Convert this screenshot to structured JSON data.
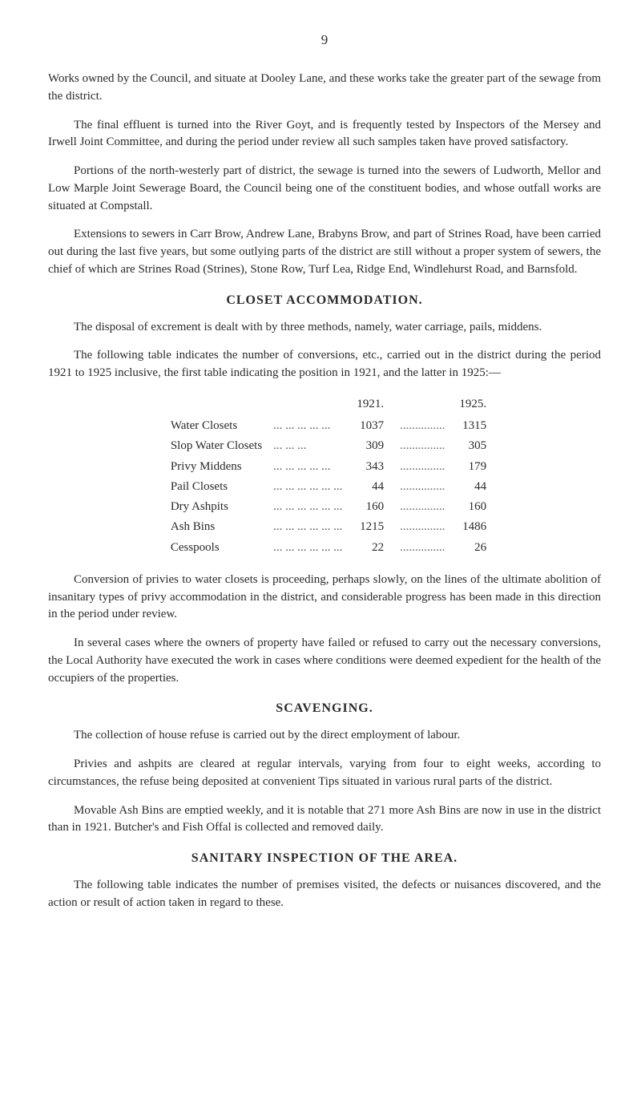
{
  "page_number": "9",
  "paragraphs": {
    "p1": "Works owned by the Council, and situate at Dooley Lane, and these works take the greater part of the sewage from the district.",
    "p2": "The final effluent is turned into the River Goyt, and is fre­quently tested by Inspectors of the Mersey and Irwell Joint Com­mittee, and during the period under review all such samples taken have proved satisfactory.",
    "p3": "Portions of the north-westerly part of district, the sewage is turned into the sewers of Ludworth, Mellor and Low Marple Joint Sewerage Board, the Council being one of the constituent bodies, and whose outfall works are situated at Compstall.",
    "p4": "Extensions to sewers in Carr Brow, Andrew Lane, Brabyns Brow, and part of Strines Road, have been carried out during the last five years, but some outlying parts of the district are still without a proper system of sewers, the chief of which are Strines Road (Strines), Stone Row, Turf Lea, Ridge End, Windlehurst Road, and Barnsfold.",
    "p5": "The disposal of excrement is dealt with by three methods, namely, water carriage, pails, middens.",
    "p6": "The following table indicates the number of conversions, etc., carried out in the district during the period 1921 to 1925 inclusive, the first table indicating the position in 1921, and the latter in 1925:—",
    "p7": "Conversion of privies to water closets is proceeding, perhaps slowly, on the lines of the ultimate abolition of insanitary types of privy accommodation in the district, and considerable progress has been made in this direction in the period under review.",
    "p8": "In several cases where the owners of property have failed or refused to carry out the necessary conversions, the Local Authority have executed the work in cases where conditions were deemed expedient for the health of the occupiers of the properties.",
    "p9": "The collection of house refuse is carried out by the direct employ­ment of labour.",
    "p10": "Privies and ashpits are cleared at regular intervals, varying from four to eight weeks, according to circumstances, the refuse being deposited at convenient Tips situated in various rural parts of the district.",
    "p11": "Movable Ash Bins are emptied weekly, and it is notable that 271 more Ash Bins are now in use in the district than in 1921. Butcher's and Fish Offal is collected and removed daily.",
    "p12": "The following table indicates the number of premises visited, the defects or nuisances discovered, and the action or result of action taken in regard to these."
  },
  "sections": {
    "closet": "CLOSET ACCOMMODATION.",
    "scavenging": "SCAVENGING.",
    "sanitary": "SANITARY INSPECTION OF THE AREA."
  },
  "stats": {
    "header_year_1": "1921.",
    "header_year_2": "1925.",
    "rows": [
      {
        "label": "Water Closets",
        "dots": "... ... ... ... ...",
        "v1": "1037",
        "mid": "...............",
        "v2": "1315"
      },
      {
        "label": "Slop Water Closets",
        "dots": "... ... ...",
        "v1": "309",
        "mid": "...............",
        "v2": "305"
      },
      {
        "label": "Privy Middens",
        "dots": "... ... ... ... ...",
        "v1": "343",
        "mid": "...............",
        "v2": "179"
      },
      {
        "label": "Pail Closets",
        "dots": "... ... ... ... ... ...",
        "v1": "44",
        "mid": "...............",
        "v2": "44"
      },
      {
        "label": "Dry Ashpits",
        "dots": "... ... ... ... ... ...",
        "v1": "160",
        "mid": "...............",
        "v2": "160"
      },
      {
        "label": "Ash Bins",
        "dots": "... ... ... ... ... ...",
        "v1": "1215",
        "mid": "...............",
        "v2": "1486"
      },
      {
        "label": "Cesspools",
        "dots": "... ... ... ... ... ...",
        "v1": "22",
        "mid": "...............",
        "v2": "26"
      }
    ]
  }
}
